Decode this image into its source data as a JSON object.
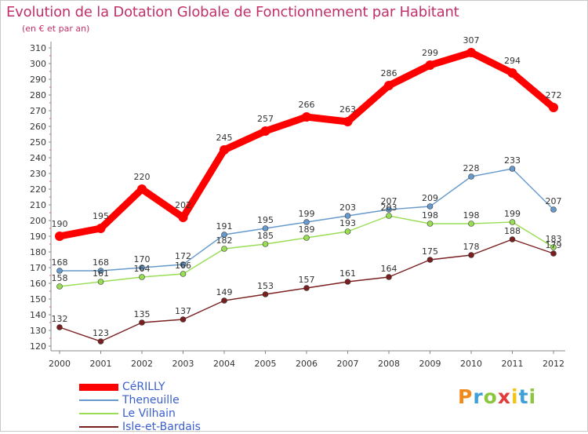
{
  "title": "Evolution de la Dotation Globale de Fonctionnement par Habitant",
  "subtitle": "(en € et par an)",
  "chart_data": {
    "type": "line",
    "title": "Evolution de la Dotation Globale de Fonctionnement par Habitant",
    "subtitle": "(en € et par an)",
    "x": [
      "2000",
      "2001",
      "2002",
      "2003",
      "2004",
      "2005",
      "2006",
      "2007",
      "2008",
      "2009",
      "2010",
      "2011",
      "2012"
    ],
    "ylim": [
      120,
      310
    ],
    "yticks": [
      120,
      130,
      140,
      150,
      160,
      170,
      180,
      190,
      200,
      210,
      220,
      230,
      240,
      250,
      260,
      270,
      280,
      290,
      300,
      310
    ],
    "grid": false,
    "legend_position": "bottom-left",
    "series": [
      {
        "name": "CéRILLY",
        "color": "#ff0000",
        "values": [
          190,
          195,
          220,
          202,
          245,
          257,
          266,
          263,
          286,
          299,
          307,
          294,
          272
        ]
      },
      {
        "name": "Theneuille",
        "color": "#6699cc",
        "values": [
          168,
          168,
          170,
          172,
          191,
          195,
          199,
          203,
          207,
          209,
          228,
          233,
          207
        ]
      },
      {
        "name": "Le Vilhain",
        "color": "#99dd55",
        "values": [
          158,
          161,
          164,
          166,
          182,
          185,
          189,
          193,
          203,
          198,
          198,
          199,
          183
        ]
      },
      {
        "name": "Isle-et-Bardais",
        "color": "#7a1f1f",
        "values": [
          132,
          123,
          135,
          137,
          149,
          153,
          157,
          161,
          164,
          175,
          178,
          188,
          179
        ]
      }
    ]
  },
  "logo": {
    "letters": [
      "P",
      "r",
      "o",
      "x",
      "i",
      "t",
      "i"
    ],
    "colors": [
      "#f08a1c",
      "#3fa0d8",
      "#8cc63f",
      "#e23b3b",
      "#f0c419",
      "#3fa0d8",
      "#8cc63f"
    ]
  }
}
